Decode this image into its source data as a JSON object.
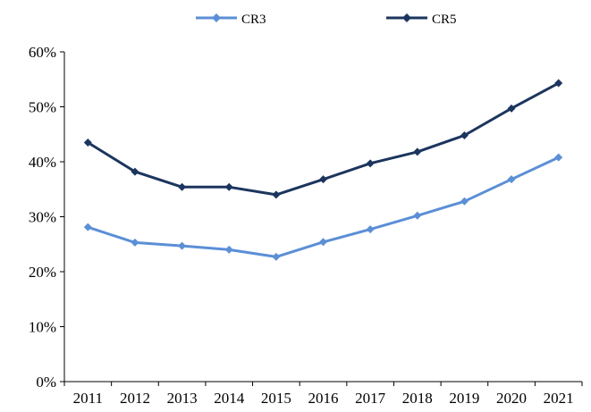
{
  "chart_data": {
    "type": "line",
    "categories": [
      "2011",
      "2012",
      "2013",
      "2014",
      "2015",
      "2016",
      "2017",
      "2018",
      "2019",
      "2020",
      "2021"
    ],
    "series": [
      {
        "name": "CR3",
        "color": "#5b8fd6",
        "marker": "diamond",
        "values": [
          28.1,
          25.3,
          24.7,
          24.0,
          22.7,
          25.4,
          27.7,
          30.2,
          32.8,
          36.8,
          40.8
        ]
      },
      {
        "name": "CR5",
        "color": "#1c355e",
        "marker": "diamond",
        "values": [
          43.5,
          38.2,
          35.4,
          35.4,
          34.0,
          36.8,
          39.7,
          41.8,
          44.8,
          49.7,
          54.3
        ]
      }
    ],
    "y_ticks": [
      "0%",
      "10%",
      "20%",
      "30%",
      "40%",
      "50%",
      "60%"
    ],
    "ylim": [
      0,
      60
    ],
    "grid": false,
    "legend_position": "top-center",
    "title": "",
    "xlabel": "",
    "ylabel": ""
  }
}
